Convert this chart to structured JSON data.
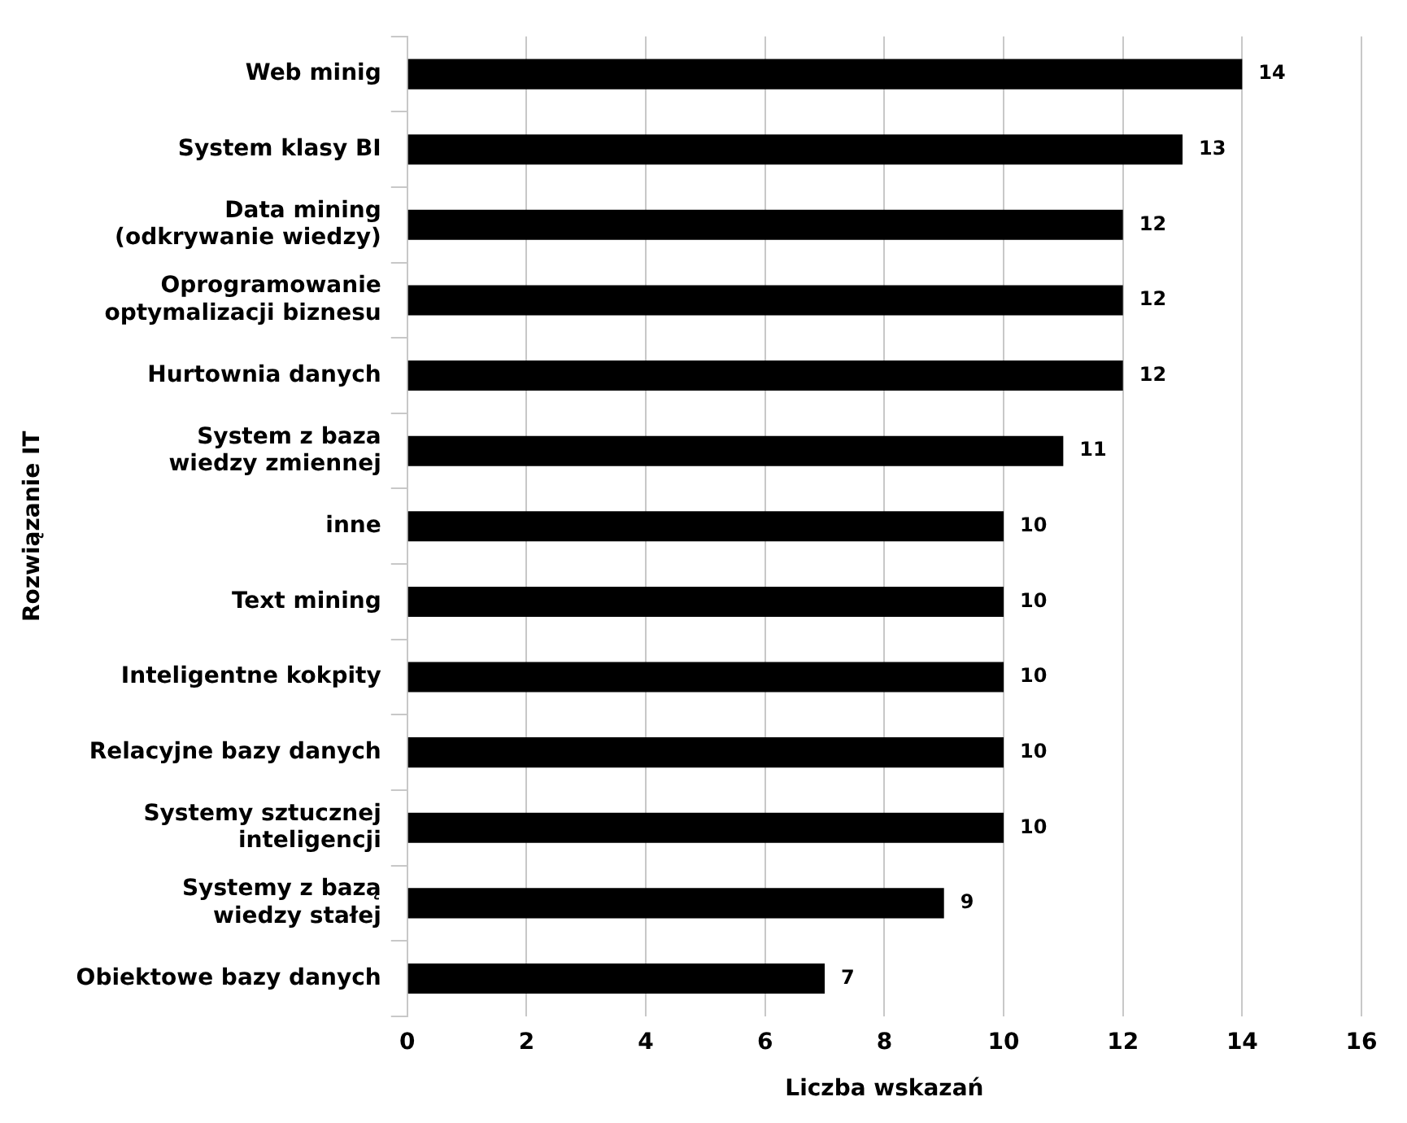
{
  "chart_data": {
    "type": "bar",
    "orientation": "horizontal",
    "xlabel": "Liczba wskazań",
    "ylabel": "Rozwiązanie IT",
    "categories": [
      "Web minig",
      "System klasy BI",
      "Data mining\n(odkrywanie wiedzy)",
      "Oprogramowanie\noptymalizacji biznesu",
      "Hurtownia danych",
      "System z baza\nwiedzy zmiennej",
      "inne",
      "Text mining",
      "Inteligentne kokpity",
      "Relacyjne bazy danych",
      "Systemy sztucznej\ninteligencji",
      "Systemy z bazą\nwiedzy stałej",
      "Obiektowe bazy danych"
    ],
    "values": [
      14,
      13,
      12,
      12,
      12,
      11,
      10,
      10,
      10,
      10,
      10,
      9,
      7
    ],
    "color": "#000000",
    "xlim": [
      0,
      16
    ],
    "xticks": [
      0,
      2,
      4,
      6,
      8,
      10,
      12,
      14,
      16
    ],
    "grid": "x",
    "data_labels": true,
    "legend": false
  }
}
